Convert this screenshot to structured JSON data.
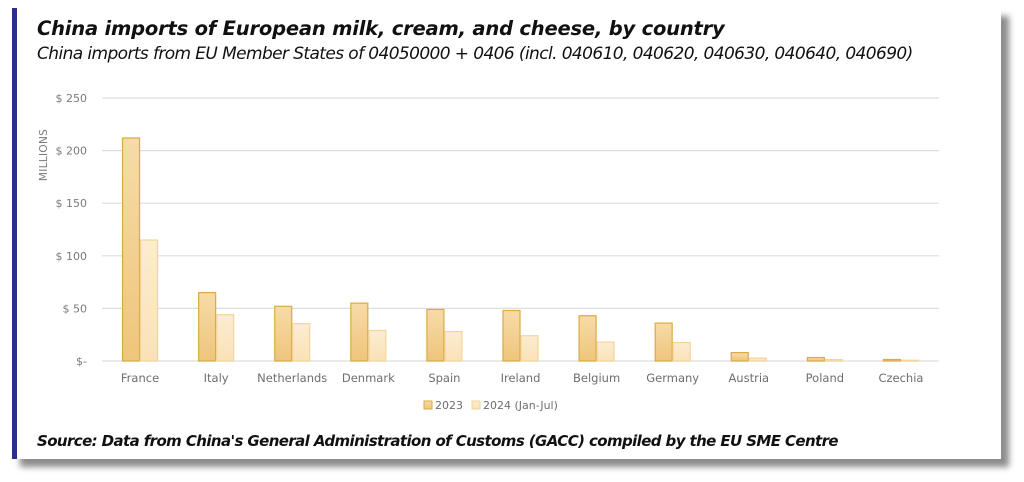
{
  "header": {
    "title": "China imports of European milk, cream, and cheese, by country",
    "subtitle": "China imports from EU Member States of 04050000 + 0406 (incl. 040610, 040620, 040630, 040640, 040690)"
  },
  "footer": {
    "source": "Source: Data from China's General Administration of Customs (GACC) compiled by the EU SME Centre"
  },
  "colors": {
    "accent_bar": "#2b2f86",
    "series_2023_fill_top": "#f7dba8",
    "series_2023_fill_bottom": "#eec57c",
    "series_2023_stroke": "#d9ab45",
    "series_2024_fill_top": "#fcecd0",
    "series_2024_fill_bottom": "#f9e2b8",
    "series_2024_stroke": "#f4d49a",
    "gridline": "#dedede"
  },
  "chart_data": {
    "type": "bar",
    "title": "China imports of European milk, cream, and cheese, by country",
    "subtitle": "China imports from EU Member States of 04050000 + 0406 (incl. 040610, 040620, 040630, 040640, 040690)",
    "xlabel": "",
    "ylabel": "MILLIONS",
    "ylim": [
      0,
      250
    ],
    "yticks": [
      0,
      50,
      100,
      150,
      200,
      250
    ],
    "ytick_labels": [
      "$-",
      "$ 50",
      "$ 100",
      "$ 150",
      "$ 200",
      "$ 250"
    ],
    "grid": true,
    "legend_position": "bottom-center",
    "categories": [
      "France",
      "Italy",
      "Netherlands",
      "Denmark",
      "Spain",
      "Ireland",
      "Belgium",
      "Germany",
      "Austria",
      "Poland",
      "Czechia"
    ],
    "series": [
      {
        "name": "2023",
        "values": [
          212,
          65,
          52,
          55,
          49,
          48,
          43,
          36,
          8,
          3.3,
          1.4
        ]
      },
      {
        "name": "2024 (Jan-Jul)",
        "values": [
          115,
          44,
          35.5,
          29,
          28,
          24,
          18,
          17.5,
          2.8,
          1.3,
          0.7
        ]
      }
    ]
  }
}
